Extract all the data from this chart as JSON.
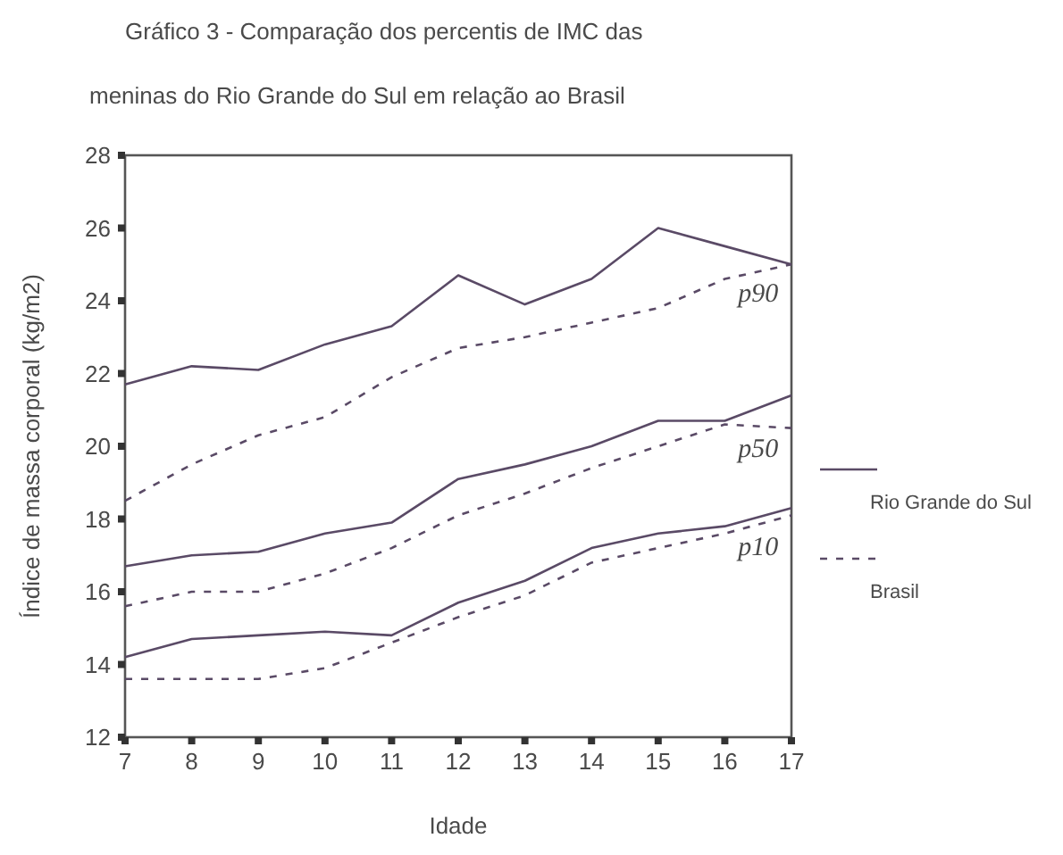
{
  "chart_data": {
    "type": "line",
    "title": "Gráfico 3 - Comparação dos percentis de IMC das",
    "subtitle": "meninas do Rio Grande do Sul em relação ao Brasil",
    "xlabel": "Idade",
    "ylabel": "Índice de massa corporal (kg/m2)",
    "x": [
      7,
      8,
      9,
      10,
      11,
      12,
      13,
      14,
      15,
      16,
      17
    ],
    "xlim": [
      7,
      17
    ],
    "xticks": [
      7,
      8,
      9,
      10,
      11,
      12,
      13,
      14,
      15,
      16,
      17
    ],
    "ylim": [
      12,
      28
    ],
    "yticks": [
      12,
      14,
      16,
      18,
      20,
      22,
      24,
      26,
      28
    ],
    "grid": false,
    "legend": "right",
    "marker": "none",
    "series": [
      {
        "name": "Rio Grande do Sul",
        "color": "#5a4a66",
        "line_style": "solid",
        "values": [
          21.7,
          22.2,
          22.1,
          22.8,
          23.3,
          24.7,
          23.9,
          24.6,
          26.0,
          25.5,
          25.0
        ]
      },
      {
        "name": "Brasil",
        "color": "#5a4a66",
        "line_style": "dashed",
        "values": [
          18.5,
          19.5,
          20.3,
          20.8,
          21.9,
          22.7,
          23.0,
          23.4,
          23.8,
          24.6,
          25.0
        ]
      },
      {
        "color": "#5a4a66",
        "line_style": "solid",
        "values": [
          16.7,
          17.0,
          17.1,
          17.6,
          17.9,
          19.1,
          19.5,
          20.0,
          20.7,
          20.7,
          21.4
        ]
      },
      {
        "color": "#5a4a66",
        "line_style": "dashed",
        "values": [
          15.6,
          16.0,
          16.0,
          16.5,
          17.2,
          18.1,
          18.7,
          19.4,
          20.0,
          20.6,
          20.5
        ]
      },
      {
        "color": "#5a4a66",
        "line_style": "solid",
        "values": [
          14.2,
          14.7,
          14.8,
          14.9,
          14.8,
          15.7,
          16.3,
          17.2,
          17.6,
          17.8,
          18.3
        ]
      },
      {
        "color": "#5a4a66",
        "line_style": "dashed",
        "values": [
          13.6,
          13.6,
          13.6,
          13.9,
          14.6,
          15.3,
          15.9,
          16.8,
          17.2,
          17.6,
          18.1
        ]
      }
    ],
    "annotations": [
      "p90",
      "p50",
      "p10"
    ]
  }
}
